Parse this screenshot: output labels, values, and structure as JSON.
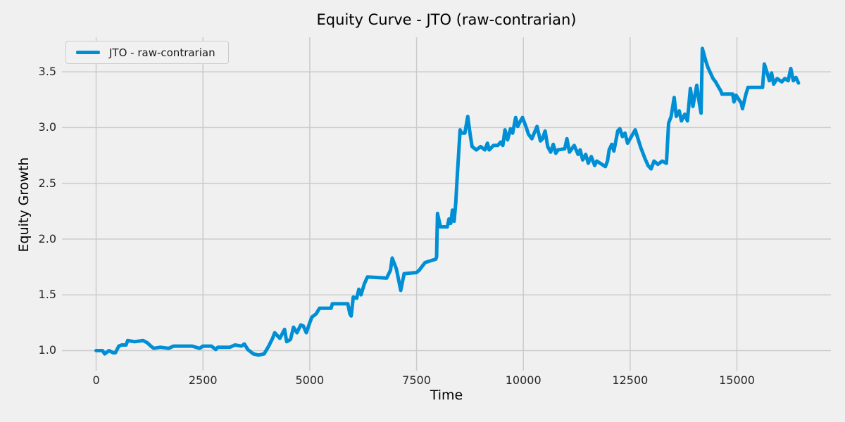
{
  "title": "Equity Curve - JTO (raw-contrarian)",
  "legend": {
    "entries": [
      {
        "label": "JTO - raw-contrarian",
        "color": "#008fd5"
      }
    ]
  },
  "colors": {
    "background": "#f0f0f0",
    "grid": "#cbcbcb",
    "line": "#008fd5",
    "text": "#262626",
    "title_text": "#000000"
  },
  "chart_data": {
    "type": "line",
    "title": "Equity Curve - JTO (raw-contrarian)",
    "xlabel": "Time",
    "ylabel": "Equity Growth",
    "xlim": [
      -800,
      17200
    ],
    "ylim": [
      0.82,
      3.81
    ],
    "grid": true,
    "legend_position": "upper-left",
    "x_ticks": [
      {
        "v": 0,
        "label": "0"
      },
      {
        "v": 2500,
        "label": "2500"
      },
      {
        "v": 5000,
        "label": "5000"
      },
      {
        "v": 7500,
        "label": "7500"
      },
      {
        "v": 10000,
        "label": "10000"
      },
      {
        "v": 12500,
        "label": "12500"
      },
      {
        "v": 15000,
        "label": "15000"
      }
    ],
    "y_ticks": [
      {
        "v": 1.0,
        "label": "1.0"
      },
      {
        "v": 1.5,
        "label": "1.5"
      },
      {
        "v": 2.0,
        "label": "2.0"
      },
      {
        "v": 2.5,
        "label": "2.5"
      },
      {
        "v": 3.0,
        "label": "3.0"
      },
      {
        "v": 3.5,
        "label": "3.5"
      }
    ],
    "series": [
      {
        "name": "JTO - raw-contrarian",
        "color": "#008fd5",
        "x": [
          0,
          150,
          200,
          300,
          400,
          450,
          530,
          600,
          700,
          740,
          900,
          1100,
          1200,
          1280,
          1350,
          1500,
          1700,
          1810,
          2100,
          2250,
          2420,
          2500,
          2700,
          2800,
          2850,
          3130,
          3250,
          3400,
          3470,
          3550,
          3680,
          3800,
          3930,
          4040,
          4130,
          4180,
          4300,
          4410,
          4460,
          4550,
          4620,
          4700,
          4790,
          4850,
          4920,
          5000,
          5050,
          5150,
          5230,
          5500,
          5530,
          5890,
          5940,
          5970,
          6020,
          6100,
          6150,
          6200,
          6280,
          6350,
          6800,
          6890,
          6930,
          6990,
          7030,
          7130,
          7210,
          7500,
          7560,
          7700,
          7950,
          7970,
          7990,
          8060,
          8220,
          8260,
          8300,
          8340,
          8380,
          8420,
          8450,
          8520,
          8550,
          8630,
          8700,
          8750,
          8800,
          8900,
          9000,
          9100,
          9160,
          9200,
          9300,
          9400,
          9470,
          9520,
          9570,
          9630,
          9700,
          9750,
          9820,
          9870,
          9920,
          9980,
          10070,
          10120,
          10200,
          10320,
          10400,
          10450,
          10510,
          10570,
          10640,
          10700,
          10760,
          10810,
          10970,
          11020,
          11080,
          11190,
          11280,
          11330,
          11390,
          11460,
          11520,
          11590,
          11670,
          11720,
          11920,
          11970,
          12010,
          12070,
          12120,
          12210,
          12260,
          12320,
          12380,
          12440,
          12620,
          12700,
          12750,
          12850,
          12920,
          12990,
          13060,
          13150,
          13250,
          13350,
          13400,
          13460,
          13530,
          13580,
          13650,
          13700,
          13780,
          13840,
          13910,
          13970,
          14060,
          14120,
          14160,
          14190,
          14270,
          14320,
          14440,
          14500,
          14560,
          14620,
          14650,
          14900,
          14930,
          14980,
          15100,
          15130,
          15210,
          15260,
          15600,
          15640,
          15700,
          15760,
          15810,
          15860,
          15940,
          16050,
          16120,
          16200,
          16260,
          16320,
          16380,
          16440
        ],
        "y": [
          1.0,
          1.0,
          0.97,
          1.0,
          0.98,
          0.98,
          1.04,
          1.05,
          1.05,
          1.09,
          1.08,
          1.09,
          1.07,
          1.04,
          1.02,
          1.03,
          1.02,
          1.04,
          1.04,
          1.04,
          1.02,
          1.04,
          1.04,
          1.01,
          1.03,
          1.03,
          1.05,
          1.04,
          1.06,
          1.01,
          0.97,
          0.96,
          0.97,
          1.04,
          1.11,
          1.16,
          1.11,
          1.19,
          1.08,
          1.1,
          1.21,
          1.16,
          1.23,
          1.22,
          1.16,
          1.25,
          1.3,
          1.33,
          1.38,
          1.38,
          1.42,
          1.42,
          1.33,
          1.31,
          1.48,
          1.47,
          1.55,
          1.5,
          1.6,
          1.66,
          1.65,
          1.72,
          1.83,
          1.77,
          1.73,
          1.54,
          1.69,
          1.7,
          1.72,
          1.79,
          1.82,
          1.84,
          2.23,
          2.11,
          2.11,
          2.18,
          2.14,
          2.26,
          2.16,
          2.33,
          2.55,
          2.98,
          2.95,
          2.95,
          3.1,
          2.95,
          2.83,
          2.8,
          2.83,
          2.8,
          2.86,
          2.8,
          2.84,
          2.84,
          2.87,
          2.84,
          2.98,
          2.89,
          2.99,
          2.95,
          3.09,
          3.01,
          3.05,
          3.09,
          3.0,
          2.94,
          2.9,
          3.01,
          2.88,
          2.9,
          2.97,
          2.83,
          2.78,
          2.85,
          2.77,
          2.8,
          2.81,
          2.9,
          2.78,
          2.84,
          2.76,
          2.8,
          2.71,
          2.76,
          2.68,
          2.74,
          2.66,
          2.7,
          2.65,
          2.7,
          2.8,
          2.85,
          2.79,
          2.97,
          2.99,
          2.92,
          2.95,
          2.86,
          2.98,
          2.88,
          2.82,
          2.72,
          2.66,
          2.63,
          2.7,
          2.67,
          2.7,
          2.68,
          3.04,
          3.1,
          3.27,
          3.1,
          3.15,
          3.06,
          3.12,
          3.06,
          3.35,
          3.19,
          3.38,
          3.22,
          3.13,
          3.71,
          3.6,
          3.54,
          3.44,
          3.41,
          3.37,
          3.33,
          3.3,
          3.3,
          3.23,
          3.29,
          3.22,
          3.17,
          3.3,
          3.36,
          3.36,
          3.57,
          3.5,
          3.42,
          3.49,
          3.39,
          3.44,
          3.41,
          3.44,
          3.42,
          3.53,
          3.42,
          3.45,
          3.4
        ]
      }
    ]
  }
}
